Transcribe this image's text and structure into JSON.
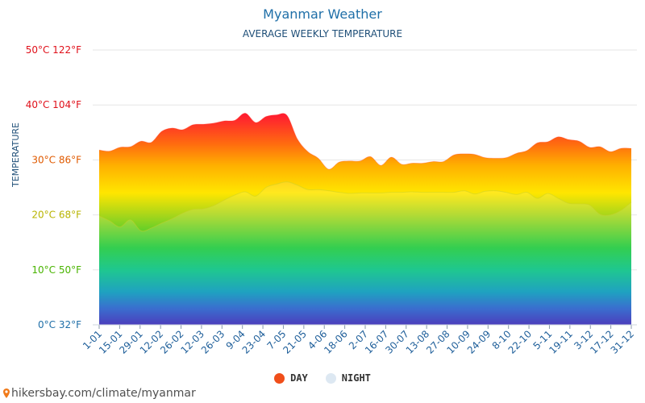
{
  "chart_data": {
    "type": "area",
    "title": "Myanmar Weather",
    "subtitle": "AVERAGE WEEKLY TEMPERATURE",
    "ylabel": "TEMPERATURE",
    "ylim": [
      0,
      50
    ],
    "y_ticks": [
      {
        "value": 0,
        "label": "0°C 32°F",
        "color": "#1f6fa8"
      },
      {
        "value": 10,
        "label": "10°C 50°F",
        "color": "#49b400"
      },
      {
        "value": 20,
        "label": "20°C 68°F",
        "color": "#b8b400"
      },
      {
        "value": 30,
        "label": "30°C 86°F",
        "color": "#e05a00"
      },
      {
        "value": 40,
        "label": "40°C 104°F",
        "color": "#e0101a"
      },
      {
        "value": 50,
        "label": "50°C 122°F",
        "color": "#e0101a"
      }
    ],
    "x_tick_labels": [
      "1-01",
      "15-01",
      "29-01",
      "12-02",
      "26-02",
      "12-03",
      "26-03",
      "9-04",
      "23-04",
      "7-05",
      "21-05",
      "4-06",
      "18-06",
      "2-07",
      "16-07",
      "30-07",
      "13-08",
      "27-08",
      "10-09",
      "24-09",
      "8-10",
      "22-10",
      "5-11",
      "19-11",
      "3-12",
      "17-12",
      "31-12"
    ],
    "grid": true,
    "legend_position": "bottom",
    "series": [
      {
        "name": "DAY",
        "color": "#f04e1a",
        "values": [
          31.8,
          31.6,
          32.3,
          32.4,
          33.4,
          33.2,
          35.2,
          35.8,
          35.5,
          36.4,
          36.5,
          36.7,
          37.1,
          37.2,
          38.5,
          36.8,
          37.9,
          38.2,
          38.1,
          33.8,
          31.5,
          30.3,
          28.3,
          29.6,
          29.8,
          29.8,
          30.6,
          29.0,
          30.5,
          29.2,
          29.4,
          29.4,
          29.7,
          29.7,
          30.9,
          31.1,
          31.0,
          30.4,
          30.3,
          30.4,
          31.2,
          31.7,
          33.1,
          33.3,
          34.2,
          33.7,
          33.4,
          32.3,
          32.4,
          31.5,
          32.1,
          32.1
        ]
      },
      {
        "name": "NIGHT",
        "color": "#dde8f2",
        "values": [
          19.8,
          18.9,
          17.8,
          19.1,
          17.1,
          17.6,
          18.5,
          19.3,
          20.3,
          21.0,
          21.1,
          21.7,
          22.7,
          23.6,
          24.2,
          23.4,
          25.0,
          25.6,
          26.0,
          25.4,
          24.6,
          24.6,
          24.4,
          24.1,
          23.9,
          24.0,
          24.0,
          24.0,
          24.1,
          24.1,
          24.2,
          24.1,
          24.1,
          24.1,
          24.1,
          24.4,
          23.8,
          24.3,
          24.4,
          24.1,
          23.7,
          24.1,
          23.0,
          23.9,
          23.0,
          22.1,
          22.0,
          21.8,
          20.1,
          20.0,
          20.8,
          22.3
        ]
      }
    ]
  },
  "legend": {
    "day_label": "DAY",
    "night_label": "NIGHT"
  },
  "footer": {
    "text": "hikersbay.com/climate/myanmar"
  }
}
